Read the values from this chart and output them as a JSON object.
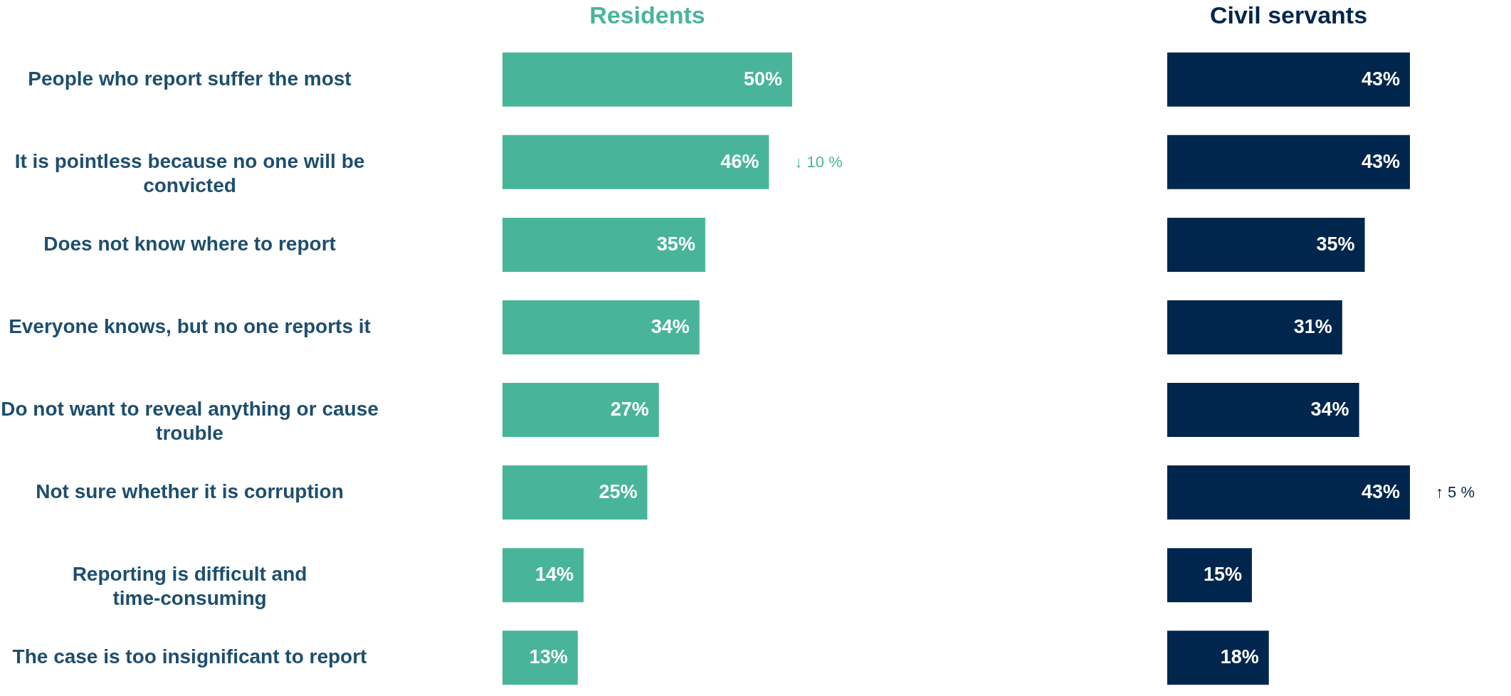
{
  "chart_data": [
    {
      "type": "bar",
      "orientation": "horizontal",
      "title": "Residents",
      "color": "#48b59a",
      "tick_labels": "y",
      "categories": [
        "People who report suffer the most",
        "It is pointless because no one will be convicted",
        "Does not know where to report",
        "Everyone knows, but no one reports it",
        "Do not want to reveal anything or cause trouble",
        "Not sure whether it is corruption",
        "Reporting is difficult and time-consuming",
        "The case is too insignificant to report"
      ],
      "values": [
        50,
        46,
        35,
        34,
        27,
        25,
        14,
        13
      ],
      "value_labels": [
        "50%",
        "46%",
        "35%",
        "34%",
        "27%",
        "25%",
        "14%",
        "13%"
      ],
      "annotations": [
        {
          "text": "↓ 10 %",
          "x": 46,
          "y": "It is pointless because no one will be convicted"
        }
      ]
    },
    {
      "type": "bar",
      "orientation": "horizontal",
      "title": "Civil servants",
      "color": "#00264d",
      "tick_labels": false,
      "categories": [
        "People who report suffer the most",
        "It is pointless because no one will be convicted",
        "Does not know where to report",
        "Everyone knows, but no one reports it",
        "Do not want to reveal anything or cause trouble",
        "Not sure whether it is corruption",
        "Reporting is difficult and time-consuming",
        "The case is too insignificant to report"
      ],
      "values": [
        43,
        43,
        35,
        31,
        34,
        43,
        15,
        18
      ],
      "value_labels": [
        "43%",
        "43%",
        "35%",
        "31%",
        "34%",
        "43%",
        "15%",
        "18%"
      ],
      "annotations": [
        {
          "text": "↑ 5 %",
          "x": 43,
          "y": "Not sure whether it is corruption"
        }
      ]
    }
  ]
}
